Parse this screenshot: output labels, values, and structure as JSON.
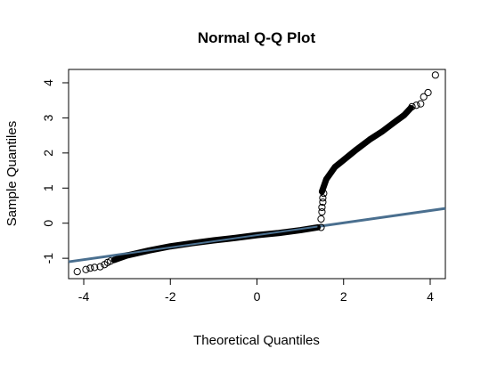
{
  "chart_data": {
    "type": "scatter",
    "title": "Normal Q-Q Plot",
    "xlabel": "Theoretical Quantiles",
    "ylabel": "Sample Quantiles",
    "xlim": [
      -4.35,
      4.35
    ],
    "ylim": [
      -1.58,
      4.38
    ],
    "x_ticks": [
      -4,
      -2,
      0,
      2,
      4
    ],
    "y_ticks": [
      -1,
      0,
      1,
      2,
      3,
      4
    ],
    "grid": false,
    "legend": "none",
    "reference_line": {
      "points": [
        [
          -4.35,
          -1.1
        ],
        [
          4.35,
          0.42
        ]
      ],
      "color": "#4a6f8f"
    },
    "point_color": "#000000",
    "dense_band": {
      "description_free_segments": true,
      "lower": [
        [
          -3.3,
          -1.05
        ],
        [
          -3.0,
          -0.92
        ],
        [
          -2.5,
          -0.78
        ],
        [
          -2.0,
          -0.66
        ],
        [
          -1.5,
          -0.57
        ],
        [
          -1.0,
          -0.49
        ],
        [
          -0.5,
          -0.42
        ],
        [
          0.0,
          -0.34
        ],
        [
          0.5,
          -0.28
        ],
        [
          1.0,
          -0.2
        ],
        [
          1.4,
          -0.12
        ]
      ],
      "upper": [
        [
          1.5,
          0.9
        ],
        [
          1.6,
          1.25
        ],
        [
          1.8,
          1.6
        ],
        [
          2.0,
          1.8
        ],
        [
          2.3,
          2.1
        ],
        [
          2.6,
          2.38
        ],
        [
          2.9,
          2.62
        ],
        [
          3.2,
          2.9
        ],
        [
          3.4,
          3.08
        ],
        [
          3.55,
          3.28
        ]
      ]
    },
    "points": [
      {
        "x": -4.15,
        "y": -1.38
      },
      {
        "x": -3.95,
        "y": -1.32
      },
      {
        "x": -3.85,
        "y": -1.28
      },
      {
        "x": -3.75,
        "y": -1.26
      },
      {
        "x": -3.62,
        "y": -1.24
      },
      {
        "x": -3.52,
        "y": -1.18
      },
      {
        "x": -3.45,
        "y": -1.12
      },
      {
        "x": -3.38,
        "y": -1.08
      },
      {
        "x": 1.48,
        "y": -0.12
      },
      {
        "x": 1.48,
        "y": 0.12
      },
      {
        "x": 1.5,
        "y": 0.32
      },
      {
        "x": 1.5,
        "y": 0.45
      },
      {
        "x": 1.52,
        "y": 0.6
      },
      {
        "x": 1.52,
        "y": 0.72
      },
      {
        "x": 1.54,
        "y": 0.85
      },
      {
        "x": 3.58,
        "y": 3.32
      },
      {
        "x": 3.68,
        "y": 3.36
      },
      {
        "x": 3.78,
        "y": 3.4
      },
      {
        "x": 3.85,
        "y": 3.6
      },
      {
        "x": 3.95,
        "y": 3.72
      },
      {
        "x": 4.12,
        "y": 4.22
      }
    ]
  }
}
